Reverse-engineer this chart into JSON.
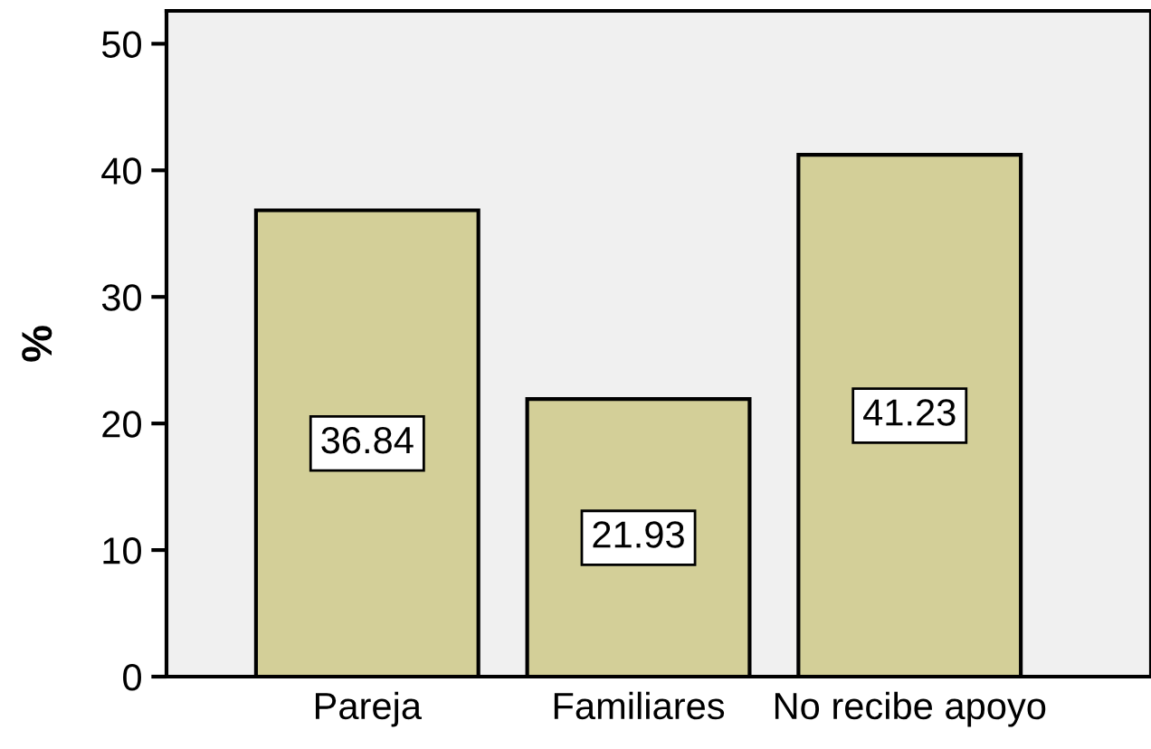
{
  "chart_data": {
    "type": "bar",
    "ylabel": "%",
    "categories": [
      "Pareja",
      "Familiares",
      "No recibe apoyo"
    ],
    "values": [
      36.84,
      21.93,
      41.23
    ],
    "color": "#d3cf98",
    "ylim": [
      0,
      52.6
    ],
    "yticks": [
      0,
      10,
      20,
      30,
      40,
      50
    ],
    "data_labels": true,
    "grid": false,
    "legend": false
  }
}
